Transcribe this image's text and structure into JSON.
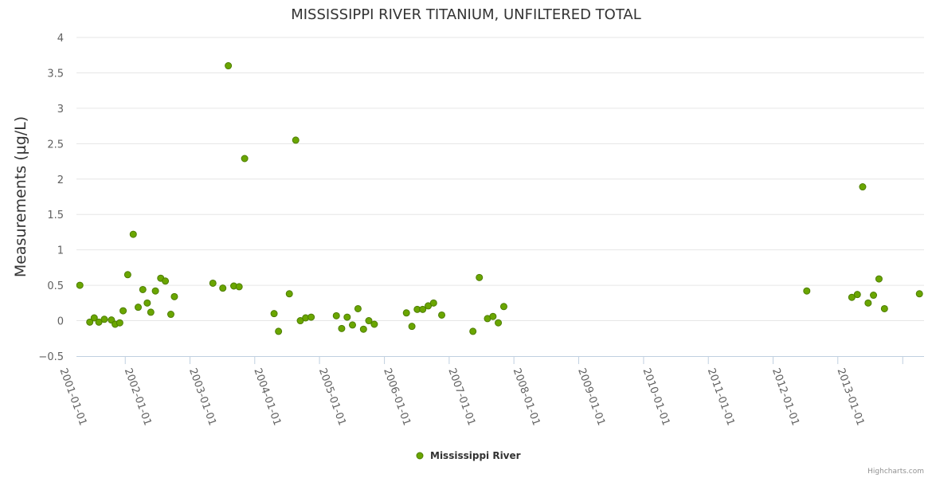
{
  "chart_data": {
    "type": "scatter",
    "title": "MISSISSIPPI RIVER TITANIUM, UNFILTERED TOTAL",
    "ylabel": "Measurements (µg/L)",
    "xlabel": "",
    "ylim": [
      -0.5,
      4
    ],
    "yticks": [
      "4",
      "3.5",
      "3",
      "2.5",
      "2",
      "1.5",
      "1",
      "0.5",
      "0",
      "−0.5"
    ],
    "ytick_values": [
      4,
      3.5,
      3,
      2.5,
      2,
      1.5,
      1,
      0.5,
      0,
      -0.5
    ],
    "xlim": [
      "2000-04-01",
      "2013-05-01"
    ],
    "xticks": [
      "2001-01-01",
      "2002-01-01",
      "2003-01-01",
      "2004-01-01",
      "2005-01-01",
      "2006-01-01",
      "2007-01-01",
      "2008-01-01",
      "2009-01-01",
      "2010-01-01",
      "2011-01-01",
      "2012-01-01",
      "2013-01-01"
    ],
    "grid": "horizontal",
    "legend": {
      "placement": "bottom-center"
    },
    "series": [
      {
        "name": "Mississippi River",
        "color": "#6aa600",
        "points": [
          [
            "2000-04-20",
            0.5
          ],
          [
            "2000-06-15",
            -0.02
          ],
          [
            "2000-07-10",
            0.04
          ],
          [
            "2000-08-05",
            -0.02
          ],
          [
            "2000-09-05",
            0.02
          ],
          [
            "2000-10-15",
            0.01
          ],
          [
            "2000-11-05",
            -0.05
          ],
          [
            "2000-12-01",
            -0.03
          ],
          [
            "2000-12-20",
            0.14
          ],
          [
            "2001-01-15",
            0.65
          ],
          [
            "2001-02-15",
            1.22
          ],
          [
            "2001-03-15",
            0.19
          ],
          [
            "2001-04-10",
            0.44
          ],
          [
            "2001-05-05",
            0.25
          ],
          [
            "2001-05-25",
            0.12
          ],
          [
            "2001-06-20",
            0.42
          ],
          [
            "2001-07-20",
            0.6
          ],
          [
            "2001-08-15",
            0.56
          ],
          [
            "2001-09-15",
            0.09
          ],
          [
            "2001-10-05",
            0.34
          ],
          [
            "2002-05-10",
            0.53
          ],
          [
            "2002-07-05",
            0.46
          ],
          [
            "2002-08-05",
            3.6
          ],
          [
            "2002-09-05",
            0.49
          ],
          [
            "2002-10-05",
            0.48
          ],
          [
            "2002-11-05",
            2.29
          ],
          [
            "2003-04-20",
            0.1
          ],
          [
            "2003-05-15",
            -0.15
          ],
          [
            "2003-07-15",
            0.38
          ],
          [
            "2003-08-20",
            2.55
          ],
          [
            "2003-09-15",
            0.0
          ],
          [
            "2003-10-15",
            0.04
          ],
          [
            "2003-11-15",
            0.05
          ],
          [
            "2004-04-05",
            0.07
          ],
          [
            "2004-05-05",
            -0.11
          ],
          [
            "2004-06-05",
            0.05
          ],
          [
            "2004-07-05",
            -0.06
          ],
          [
            "2004-08-05",
            0.17
          ],
          [
            "2004-09-05",
            -0.12
          ],
          [
            "2004-10-05",
            0.0
          ],
          [
            "2004-11-05",
            -0.05
          ],
          [
            "2005-05-05",
            0.11
          ],
          [
            "2005-06-05",
            -0.08
          ],
          [
            "2005-07-05",
            0.16
          ],
          [
            "2005-08-05",
            0.16
          ],
          [
            "2005-09-05",
            0.21
          ],
          [
            "2005-10-05",
            0.25
          ],
          [
            "2005-11-20",
            0.08
          ],
          [
            "2006-05-15",
            -0.15
          ],
          [
            "2006-06-20",
            0.61
          ],
          [
            "2006-08-05",
            0.03
          ],
          [
            "2006-09-05",
            0.06
          ],
          [
            "2006-10-05",
            -0.03
          ],
          [
            "2006-11-05",
            0.2
          ],
          [
            "2011-07-10",
            0.42
          ],
          [
            "2012-03-20",
            0.33
          ],
          [
            "2012-04-20",
            0.37
          ],
          [
            "2012-05-20",
            1.89
          ],
          [
            "2012-06-20",
            0.25
          ],
          [
            "2012-07-20",
            0.36
          ],
          [
            "2012-08-20",
            0.59
          ],
          [
            "2012-09-20",
            0.17
          ],
          [
            "2013-04-05",
            0.38
          ]
        ]
      }
    ]
  },
  "credits": "Highcharts.com"
}
